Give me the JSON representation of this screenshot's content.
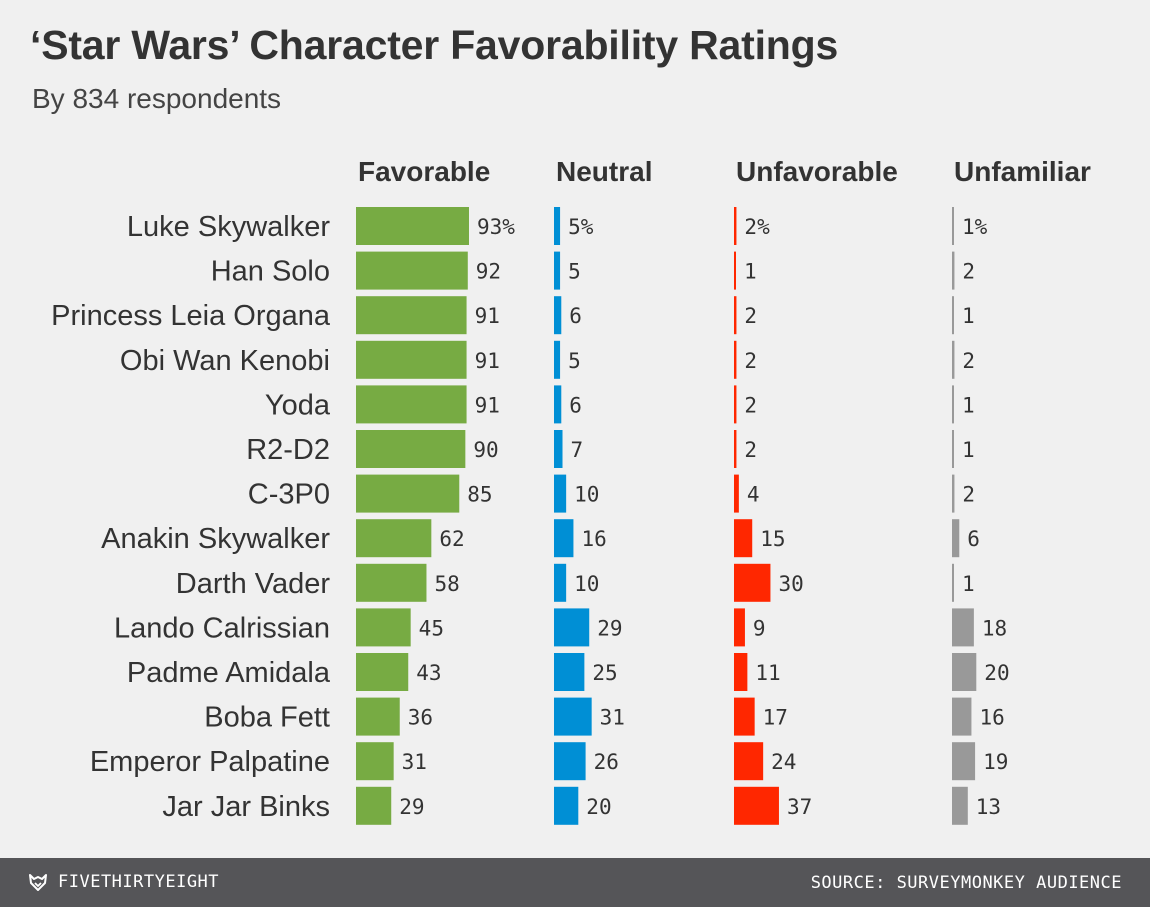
{
  "colors": {
    "favorable": "#77ab43",
    "neutral": "#008fd5",
    "unfavorable": "#ff2700",
    "unfamiliar": "#999999",
    "background": "#f0f0f0",
    "footer": "#555558"
  },
  "footer": {
    "brand": "FIVETHIRTYEIGHT",
    "brand_icon": "fivethirtyeight-fox-icon",
    "source": "SOURCE: SURVEYMONKEY AUDIENCE"
  },
  "chart_data": {
    "type": "bar",
    "orientation": "horizontal",
    "title": "‘Star Wars’ Character Favorability Ratings",
    "subtitle": "By 834 respondents",
    "categories": [
      "Luke Skywalker",
      "Han Solo",
      "Princess Leia Organa",
      "Obi Wan Kenobi",
      "Yoda",
      "R2-D2",
      "C-3P0",
      "Anakin Skywalker",
      "Darth Vader",
      "Lando Calrissian",
      "Padme Amidala",
      "Boba Fett",
      "Emperor Palpatine",
      "Jar Jar Binks"
    ],
    "series": [
      {
        "name": "Favorable",
        "values": [
          93,
          92,
          91,
          91,
          91,
          90,
          85,
          62,
          58,
          45,
          43,
          36,
          31,
          29
        ]
      },
      {
        "name": "Neutral",
        "values": [
          5,
          5,
          6,
          5,
          6,
          7,
          10,
          16,
          10,
          29,
          25,
          31,
          26,
          20
        ]
      },
      {
        "name": "Unfavorable",
        "values": [
          2,
          1,
          2,
          2,
          2,
          2,
          4,
          15,
          30,
          9,
          11,
          17,
          24,
          37
        ]
      },
      {
        "name": "Unfamiliar",
        "values": [
          1,
          2,
          1,
          2,
          1,
          1,
          2,
          6,
          1,
          18,
          20,
          16,
          19,
          13
        ]
      }
    ],
    "unit_suffix_first_row": "%",
    "grid": false,
    "legend": "column-headers"
  }
}
